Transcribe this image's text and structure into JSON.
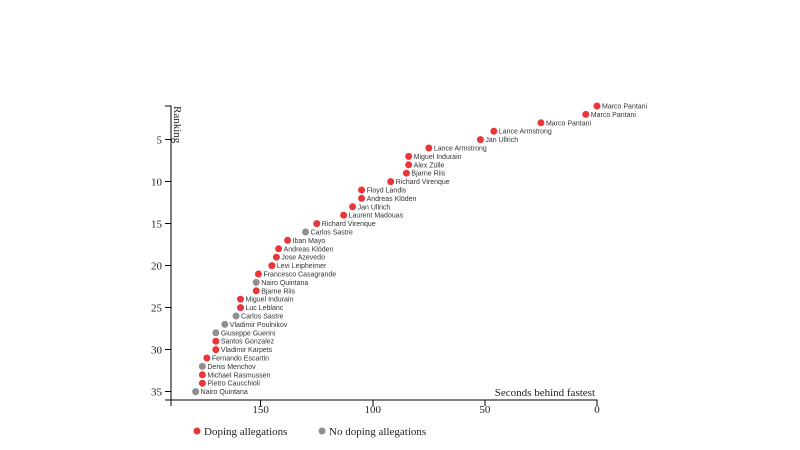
{
  "chart_data": {
    "type": "scatter",
    "x_label": "Seconds behind fastest",
    "y_label": "Ranking",
    "xlim": [
      190,
      0
    ],
    "xticks": [
      150,
      100,
      50,
      0
    ],
    "ylim": [
      1,
      36
    ],
    "yticks": [
      5,
      10,
      15,
      20,
      25,
      30,
      35
    ],
    "legend": "bottom-left",
    "series": [
      {
        "name": "Doping allegations",
        "color": "#e8363a",
        "x": [
          0,
          5,
          25,
          46,
          52,
          75,
          84,
          84,
          85,
          92,
          105,
          105,
          109,
          113,
          125,
          138,
          142,
          143,
          145,
          151,
          152,
          159,
          159,
          170,
          170,
          174,
          176,
          176
        ],
        "values": [
          1,
          2,
          3,
          4,
          5,
          6,
          7,
          8,
          9,
          10,
          11,
          12,
          13,
          14,
          15,
          17,
          18,
          19,
          20,
          21,
          23,
          24,
          25,
          29,
          30,
          31,
          33,
          34
        ],
        "labels": [
          "Marco Pantani",
          "Marco Pantani",
          "Marco Pantani",
          "Lance Armstrong",
          "Jan Ullrich",
          "Lance Armstrong",
          "Miguel Indurain",
          "Alex Zülle",
          "Bjarne Riis",
          "Richard Virenque",
          "Floyd Landis",
          "Andreas Klöden",
          "Jan Ullrich",
          "Laurent Madouas",
          "Richard Virenque",
          "Iban Mayo",
          "Andreas Klöden",
          "Jose Azevedo",
          "Levi Leipheimer",
          "Francesco Casagrande",
          "Bjarne Riis",
          "Miguel Indurain",
          "Luc Leblanc",
          "Santos Gonzalez",
          "Vladimir Karpets",
          "Fernando Escartin",
          "Michael Rasmussen",
          "Pietro Caucchioli"
        ]
      },
      {
        "name": "No doping allegations",
        "color": "#8f8f8f",
        "x": [
          130,
          152,
          161,
          166,
          170,
          176,
          179
        ],
        "values": [
          16,
          22,
          26,
          27,
          28,
          32,
          35
        ],
        "labels": [
          "Carlos Sastre",
          "Nairo Quintana",
          "Carlos Sastre",
          "Vladimir Poulnikov",
          "Giuseppe Guerini",
          "Denis Menchov",
          "Nairo Quintana"
        ]
      }
    ]
  }
}
